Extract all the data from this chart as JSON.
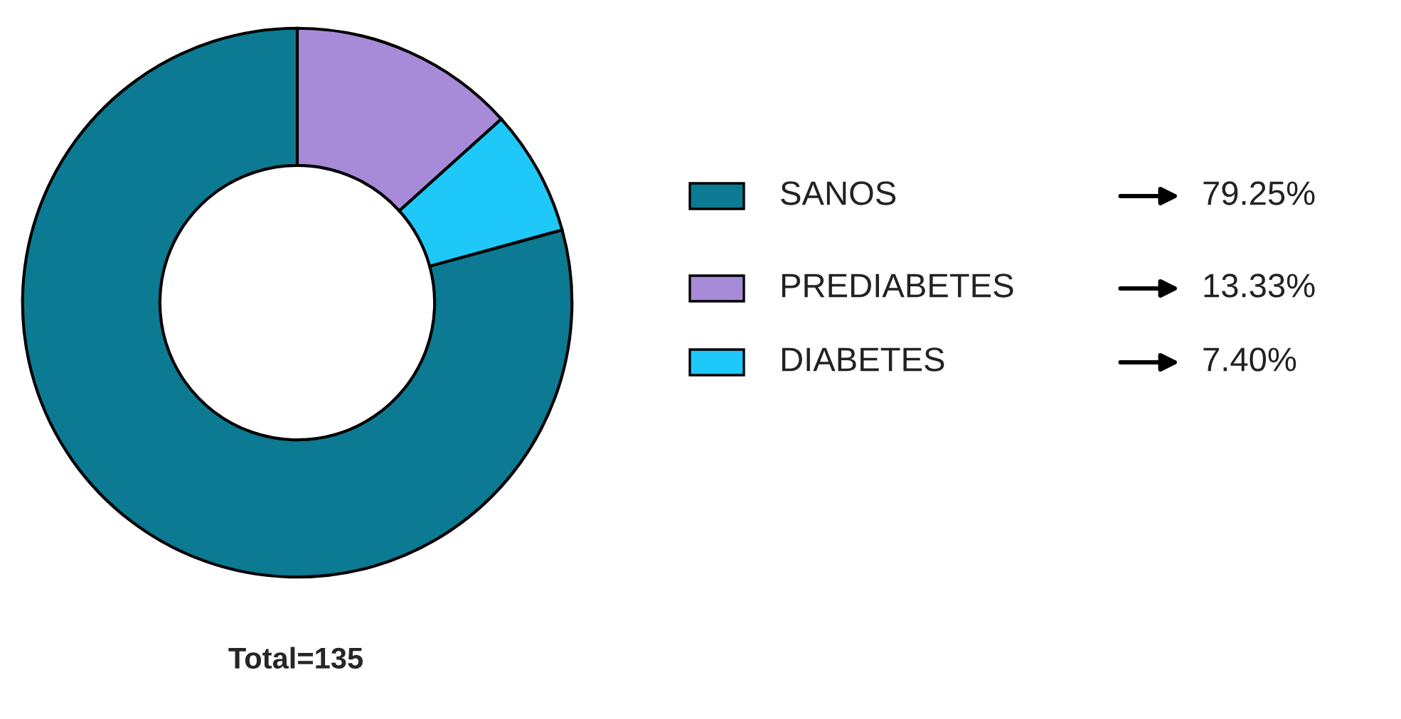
{
  "chart_data": {
    "type": "donut",
    "categories": [
      "SANOS",
      "PREDIABETES",
      "DIABETES"
    ],
    "values": [
      79.25,
      13.33,
      7.4
    ],
    "colors": [
      "#0b7a92",
      "#a78bd8",
      "#1ec8f8"
    ],
    "value_labels": [
      "79.25%",
      "13.33%",
      "7.40%"
    ],
    "legend": "right",
    "annotations": [
      "Total=135"
    ]
  }
}
